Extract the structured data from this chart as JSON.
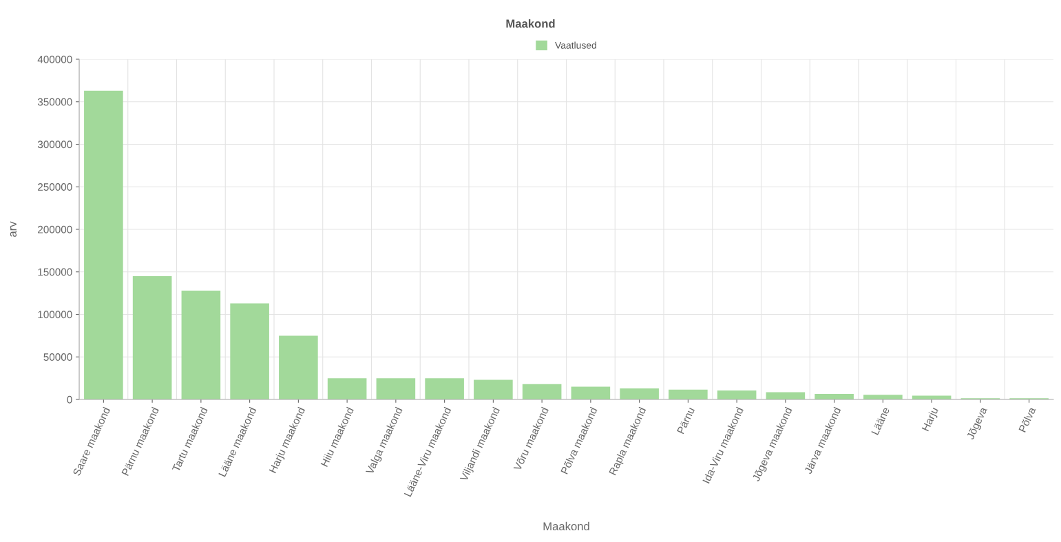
{
  "chart_data": {
    "type": "bar",
    "title": "Maakond",
    "xlabel": "Maakond",
    "ylabel": "arv",
    "categories": [
      "Saare maakond",
      "Pärnu maakond",
      "Tartu maakond",
      "Lääne maakond",
      "Harju maakond",
      "Hiiu maakond",
      "Valga maakond",
      "Lääne-Viru maakond",
      "Viljandi maakond",
      "Võru maakond",
      "Põlva maakond",
      "Rapla maakond",
      "Pärnu",
      "Ida-Viru maakond",
      "Jõgeva maakond",
      "Järva maakond",
      "Lääne",
      "Harju",
      "Jõgeva",
      "Põlva"
    ],
    "series": [
      {
        "name": "Vaatlused",
        "color": "#a2d99a",
        "values": [
          363000,
          145000,
          128000,
          113000,
          75000,
          25000,
          25000,
          25000,
          23000,
          18000,
          15000,
          13000,
          11500,
          10500,
          8500,
          6500,
          5500,
          4500,
          1500,
          1500
        ]
      }
    ],
    "ylim": [
      0,
      400000
    ],
    "yticks": [
      0,
      50000,
      100000,
      150000,
      200000,
      250000,
      300000,
      350000,
      400000
    ],
    "grid": true,
    "legend": "top"
  }
}
